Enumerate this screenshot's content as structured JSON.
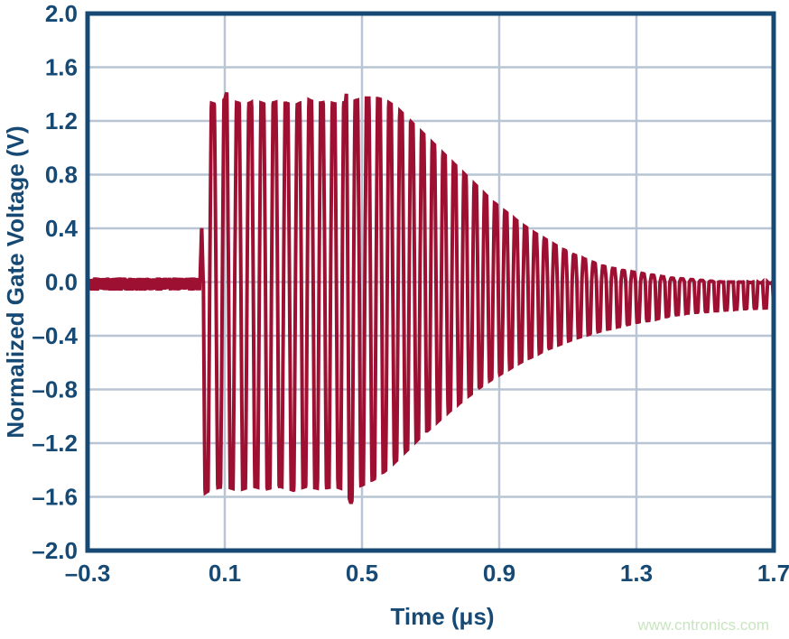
{
  "figure": {
    "watermark": "www.cntronics.com"
  },
  "chart_data": {
    "type": "line",
    "title": "",
    "xlabel": "Time (μs)",
    "ylabel": "Normalized Gate Voltage (V)",
    "xlim": [
      -0.3,
      1.7
    ],
    "ylim": [
      -2.0,
      2.0
    ],
    "grid": true,
    "legend": false,
    "x_tick_values": [
      -0.3,
      0.1,
      0.5,
      0.9,
      1.3,
      1.7
    ],
    "x_tick_labels": [
      "–0.3",
      "0.1",
      "0.5",
      "0.9",
      "1.3",
      "1.7"
    ],
    "y_tick_values": [
      2.0,
      1.6,
      1.2,
      0.8,
      0.4,
      0.0,
      -0.4,
      -0.8,
      -1.2,
      -1.6,
      -2.0
    ],
    "y_tick_labels": [
      "2.0",
      "1.6",
      "1.2",
      "0.8",
      "0.4",
      "0.0",
      "–0.4",
      "–0.8",
      "–1.2",
      "–1.6",
      "–2.0"
    ],
    "colors": {
      "trace": "#9E1031",
      "axis": "#164A75",
      "grid": "#B9C5D4",
      "text": "#164A75",
      "watermark": "#C8E5C0",
      "background": "#FFFFFF"
    },
    "waveform": {
      "description": "Gate-voltage ring burst: noisy baseline near 0 V, small pre-spike, hard-clipped oscillation burst (~±1.5 V) from ~0.04–0.55 us, then exponential ring-down to a small ripple around -0.1 V",
      "pre_noise": {
        "t_end": 0.028,
        "center": -0.015,
        "half_width": 0.05
      },
      "pre_spike": {
        "t0": 0.028,
        "t1": 0.037,
        "peak": 0.43
      },
      "burst_start": 0.037,
      "carrier_period_start_us": 0.037,
      "carrier_period_end_us": 0.0285,
      "chirp_end_t": 1.0,
      "clip_gain": 1.35,
      "envelope_top": [
        [
          0.037,
          1.48
        ],
        [
          0.052,
          1.34
        ],
        [
          0.075,
          1.32
        ],
        [
          0.1,
          1.36
        ],
        [
          0.113,
          1.48
        ],
        [
          0.127,
          1.34
        ],
        [
          0.16,
          1.32
        ],
        [
          0.19,
          1.35
        ],
        [
          0.22,
          1.32
        ],
        [
          0.25,
          1.34
        ],
        [
          0.263,
          1.52
        ],
        [
          0.277,
          1.33
        ],
        [
          0.31,
          1.32
        ],
        [
          0.34,
          1.36
        ],
        [
          0.37,
          1.33
        ],
        [
          0.4,
          1.34
        ],
        [
          0.43,
          1.32
        ],
        [
          0.452,
          1.34
        ],
        [
          0.466,
          1.74
        ],
        [
          0.48,
          1.35
        ],
        [
          0.51,
          1.37
        ],
        [
          0.54,
          1.37
        ],
        [
          0.57,
          1.35
        ],
        [
          0.6,
          1.3
        ],
        [
          0.64,
          1.2
        ],
        [
          0.68,
          1.1
        ],
        [
          0.72,
          1.0
        ],
        [
          0.76,
          0.9
        ],
        [
          0.8,
          0.8
        ],
        [
          0.84,
          0.7
        ],
        [
          0.88,
          0.6
        ],
        [
          0.92,
          0.52
        ],
        [
          0.96,
          0.44
        ],
        [
          1.0,
          0.37
        ],
        [
          1.04,
          0.31
        ],
        [
          1.08,
          0.25
        ],
        [
          1.12,
          0.2
        ],
        [
          1.16,
          0.16
        ],
        [
          1.2,
          0.12
        ],
        [
          1.25,
          0.09
        ],
        [
          1.3,
          0.07
        ],
        [
          1.35,
          0.05
        ],
        [
          1.4,
          0.03
        ],
        [
          1.45,
          0.02
        ],
        [
          1.5,
          0.01
        ],
        [
          1.55,
          0.0
        ],
        [
          1.6,
          0.0
        ],
        [
          1.7,
          -0.01
        ]
      ],
      "envelope_bottom": [
        [
          0.037,
          -1.58
        ],
        [
          0.06,
          -1.54
        ],
        [
          0.1,
          -1.52
        ],
        [
          0.14,
          -1.55
        ],
        [
          0.18,
          -1.52
        ],
        [
          0.22,
          -1.54
        ],
        [
          0.26,
          -1.52
        ],
        [
          0.3,
          -1.55
        ],
        [
          0.34,
          -1.52
        ],
        [
          0.38,
          -1.54
        ],
        [
          0.42,
          -1.52
        ],
        [
          0.455,
          -1.55
        ],
        [
          0.468,
          -1.65
        ],
        [
          0.482,
          -1.53
        ],
        [
          0.51,
          -1.5
        ],
        [
          0.54,
          -1.46
        ],
        [
          0.57,
          -1.4
        ],
        [
          0.6,
          -1.33
        ],
        [
          0.64,
          -1.23
        ],
        [
          0.68,
          -1.13
        ],
        [
          0.72,
          -1.04
        ],
        [
          0.76,
          -0.95
        ],
        [
          0.8,
          -0.87
        ],
        [
          0.84,
          -0.79
        ],
        [
          0.88,
          -0.72
        ],
        [
          0.92,
          -0.66
        ],
        [
          0.96,
          -0.6
        ],
        [
          1.0,
          -0.55
        ],
        [
          1.04,
          -0.5
        ],
        [
          1.08,
          -0.46
        ],
        [
          1.12,
          -0.42
        ],
        [
          1.16,
          -0.39
        ],
        [
          1.2,
          -0.36
        ],
        [
          1.25,
          -0.33
        ],
        [
          1.3,
          -0.3
        ],
        [
          1.35,
          -0.28
        ],
        [
          1.4,
          -0.25
        ],
        [
          1.45,
          -0.23
        ],
        [
          1.5,
          -0.22
        ],
        [
          1.55,
          -0.21
        ],
        [
          1.6,
          -0.2
        ],
        [
          1.7,
          -0.19
        ]
      ]
    }
  }
}
